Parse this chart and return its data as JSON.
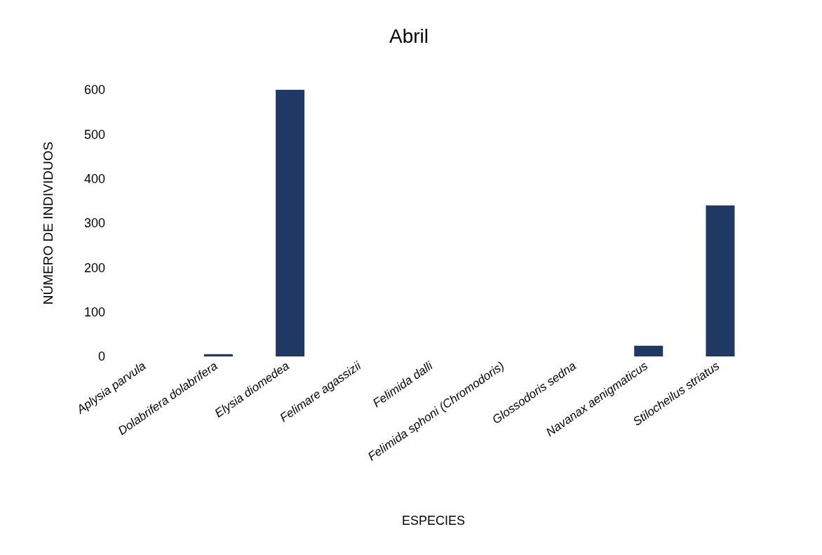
{
  "chart_data": {
    "type": "bar",
    "title": "Abril",
    "xlabel": "ESPECIES",
    "ylabel": "NÚMERO DE INDIVIDUOS",
    "categories": [
      "Aplysia parvula",
      "Dolabrifera dolabrifera",
      "Elysia diomedea",
      "Felimare agassizii",
      "Felimida dalli",
      "Felimida sphoni (Chromodoris)",
      "Glossodoris sedna",
      "Navanax aenigmaticus",
      "Stilocheilus striatus"
    ],
    "values": [
      0,
      5,
      600,
      0,
      0,
      0,
      0,
      24,
      340
    ],
    "colors": [
      "#4e6b2b",
      "#1f3864",
      "#1f3864",
      "#4e6b2b",
      "#4e6b2b",
      "#4e6b2b",
      "#4e6b2b",
      "#1f3864",
      "#1f3864"
    ],
    "ylim": [
      0,
      600
    ],
    "yticks": [
      0,
      100,
      200,
      300,
      400,
      500,
      600
    ],
    "grid": false
  }
}
